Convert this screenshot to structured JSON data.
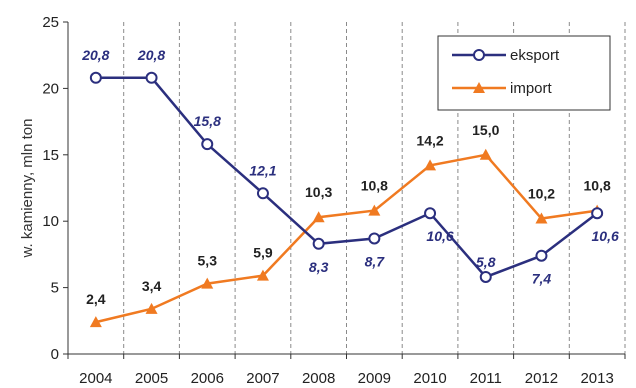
{
  "chart_data": {
    "type": "line",
    "ylabel": "w. kamienny, mln ton",
    "x": [
      "2004",
      "2005",
      "2006",
      "2007",
      "2008",
      "2009",
      "2010",
      "2011",
      "2012",
      "2013"
    ],
    "ylim": [
      0,
      25
    ],
    "yticks": [
      "0",
      "5",
      "10",
      "15",
      "20",
      "25"
    ],
    "grid": "vertical dashed",
    "legend_position": "top-right",
    "series": [
      {
        "name": "eksport",
        "values": [
          20.8,
          20.8,
          15.8,
          12.1,
          8.3,
          8.7,
          10.6,
          5.8,
          7.4,
          10.6
        ],
        "labels": [
          "20,8",
          "20,8",
          "15,8",
          "12,1",
          "8,3",
          "8,7",
          "10,6",
          "5,8",
          "7,4",
          "10,6"
        ],
        "color": "#2b2f7e",
        "marker": "circle"
      },
      {
        "name": "import",
        "values": [
          2.4,
          3.4,
          5.3,
          5.9,
          10.3,
          10.8,
          14.2,
          15.0,
          10.2,
          10.8
        ],
        "labels": [
          "2,4",
          "3,4",
          "5,3",
          "5,9",
          "10,3",
          "10,8",
          "14,2",
          "15,0",
          "10,2",
          "10,8"
        ],
        "color": "#f07a21",
        "marker": "triangle"
      }
    ]
  }
}
